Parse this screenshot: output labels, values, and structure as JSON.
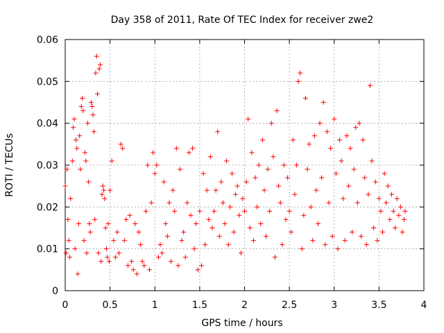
{
  "chart_data": {
    "type": "scatter",
    "title": "Day 358 of 2011, Rate Of TEC Index for receiver zwe2",
    "xlabel": "GPS time / hours",
    "ylabel": "ROTI / TECUs",
    "xlim": [
      0,
      4
    ],
    "ylim": [
      0,
      0.06
    ],
    "x_ticks": [
      0,
      0.5,
      1,
      1.5,
      2,
      2.5,
      3,
      3.5,
      4
    ],
    "x_tick_labels": [
      "0",
      "0.5",
      "1",
      "1.5",
      "2",
      "2.5",
      "3",
      "3.5",
      "4"
    ],
    "y_ticks": [
      0,
      0.01,
      0.02,
      0.03,
      0.04,
      0.05,
      0.06
    ],
    "y_tick_labels": [
      "0",
      "0.01",
      "0.02",
      "0.03",
      "0.04",
      "0.05",
      "0.06"
    ],
    "grid": true,
    "marker": "+",
    "series": [
      {
        "name": "ROTI",
        "color": "#ff0000",
        "points": [
          [
            0.0,
            0.025
          ],
          [
            0.01,
            0.009
          ],
          [
            0.02,
            0.029
          ],
          [
            0.03,
            0.017
          ],
          [
            0.04,
            0.012
          ],
          [
            0.05,
            0.008
          ],
          [
            0.06,
            0.022
          ],
          [
            0.08,
            0.031
          ],
          [
            0.09,
            0.039
          ],
          [
            0.1,
            0.041
          ],
          [
            0.11,
            0.01
          ],
          [
            0.12,
            0.036
          ],
          [
            0.13,
            0.034
          ],
          [
            0.14,
            0.004
          ],
          [
            0.15,
            0.016
          ],
          [
            0.16,
            0.037
          ],
          [
            0.17,
            0.029
          ],
          [
            0.18,
            0.044
          ],
          [
            0.19,
            0.046
          ],
          [
            0.2,
            0.043
          ],
          [
            0.21,
            0.012
          ],
          [
            0.22,
            0.033
          ],
          [
            0.23,
            0.031
          ],
          [
            0.24,
            0.009
          ],
          [
            0.25,
            0.04
          ],
          [
            0.26,
            0.026
          ],
          [
            0.27,
            0.016
          ],
          [
            0.28,
            0.014
          ],
          [
            0.29,
            0.045
          ],
          [
            0.3,
            0.044
          ],
          [
            0.31,
            0.042
          ],
          [
            0.32,
            0.038
          ],
          [
            0.33,
            0.017
          ],
          [
            0.34,
            0.052
          ],
          [
            0.35,
            0.056
          ],
          [
            0.36,
            0.047
          ],
          [
            0.37,
            0.009
          ],
          [
            0.38,
            0.053
          ],
          [
            0.39,
            0.054
          ],
          [
            0.4,
            0.007
          ],
          [
            0.41,
            0.023
          ],
          [
            0.42,
            0.025
          ],
          [
            0.43,
            0.024
          ],
          [
            0.44,
            0.022
          ],
          [
            0.45,
            0.015
          ],
          [
            0.46,
            0.01
          ],
          [
            0.47,
            0.008
          ],
          [
            0.48,
            0.016
          ],
          [
            0.49,
            0.007
          ],
          [
            0.5,
            0.024
          ],
          [
            0.52,
            0.031
          ],
          [
            0.54,
            0.012
          ],
          [
            0.56,
            0.008
          ],
          [
            0.58,
            0.014
          ],
          [
            0.6,
            0.009
          ],
          [
            0.62,
            0.035
          ],
          [
            0.64,
            0.034
          ],
          [
            0.66,
            0.012
          ],
          [
            0.68,
            0.017
          ],
          [
            0.7,
            0.006
          ],
          [
            0.72,
            0.018
          ],
          [
            0.74,
            0.007
          ],
          [
            0.76,
            0.005
          ],
          [
            0.78,
            0.016
          ],
          [
            0.8,
            0.004
          ],
          [
            0.82,
            0.014
          ],
          [
            0.84,
            0.011
          ],
          [
            0.86,
            0.007
          ],
          [
            0.88,
            0.006
          ],
          [
            0.9,
            0.019
          ],
          [
            0.92,
            0.03
          ],
          [
            0.94,
            0.005
          ],
          [
            0.96,
            0.021
          ],
          [
            0.98,
            0.033
          ],
          [
            1.0,
            0.028
          ],
          [
            1.02,
            0.03
          ],
          [
            1.04,
            0.008
          ],
          [
            1.06,
            0.011
          ],
          [
            1.08,
            0.009
          ],
          [
            1.1,
            0.026
          ],
          [
            1.12,
            0.016
          ],
          [
            1.14,
            0.013
          ],
          [
            1.16,
            0.021
          ],
          [
            1.18,
            0.007
          ],
          [
            1.2,
            0.024
          ],
          [
            1.22,
            0.019
          ],
          [
            1.24,
            0.034
          ],
          [
            1.26,
            0.006
          ],
          [
            1.28,
            0.029
          ],
          [
            1.3,
            0.012
          ],
          [
            1.32,
            0.014
          ],
          [
            1.34,
            0.008
          ],
          [
            1.36,
            0.021
          ],
          [
            1.38,
            0.033
          ],
          [
            1.4,
            0.018
          ],
          [
            1.42,
            0.034
          ],
          [
            1.44,
            0.01
          ],
          [
            1.46,
            0.016
          ],
          [
            1.48,
            0.005
          ],
          [
            1.5,
            0.019
          ],
          [
            1.52,
            0.006
          ],
          [
            1.54,
            0.028
          ],
          [
            1.56,
            0.011
          ],
          [
            1.58,
            0.024
          ],
          [
            1.6,
            0.017
          ],
          [
            1.62,
            0.032
          ],
          [
            1.64,
            0.015
          ],
          [
            1.66,
            0.019
          ],
          [
            1.68,
            0.024
          ],
          [
            1.7,
            0.038
          ],
          [
            1.72,
            0.013
          ],
          [
            1.74,
            0.026
          ],
          [
            1.76,
            0.021
          ],
          [
            1.78,
            0.016
          ],
          [
            1.8,
            0.031
          ],
          [
            1.82,
            0.011
          ],
          [
            1.84,
            0.02
          ],
          [
            1.86,
            0.028
          ],
          [
            1.88,
            0.014
          ],
          [
            1.9,
            0.023
          ],
          [
            1.92,
            0.025
          ],
          [
            1.94,
            0.018
          ],
          [
            1.96,
            0.009
          ],
          [
            1.98,
            0.022
          ],
          [
            2.0,
            0.019
          ],
          [
            2.02,
            0.026
          ],
          [
            2.04,
            0.041
          ],
          [
            2.06,
            0.015
          ],
          [
            2.08,
            0.033
          ],
          [
            2.1,
            0.012
          ],
          [
            2.12,
            0.027
          ],
          [
            2.14,
            0.02
          ],
          [
            2.16,
            0.03
          ],
          [
            2.18,
            0.016
          ],
          [
            2.2,
            0.036
          ],
          [
            2.22,
            0.024
          ],
          [
            2.24,
            0.013
          ],
          [
            2.26,
            0.029
          ],
          [
            2.28,
            0.019
          ],
          [
            2.3,
            0.04
          ],
          [
            2.32,
            0.032
          ],
          [
            2.34,
            0.008
          ],
          [
            2.36,
            0.043
          ],
          [
            2.38,
            0.025
          ],
          [
            2.4,
            0.021
          ],
          [
            2.42,
            0.011
          ],
          [
            2.44,
            0.03
          ],
          [
            2.46,
            0.017
          ],
          [
            2.48,
            0.027
          ],
          [
            2.5,
            0.019
          ],
          [
            2.52,
            0.014
          ],
          [
            2.54,
            0.036
          ],
          [
            2.56,
            0.023
          ],
          [
            2.58,
            0.03
          ],
          [
            2.6,
            0.05
          ],
          [
            2.62,
            0.052
          ],
          [
            2.64,
            0.01
          ],
          [
            2.66,
            0.018
          ],
          [
            2.68,
            0.046
          ],
          [
            2.7,
            0.029
          ],
          [
            2.72,
            0.035
          ],
          [
            2.74,
            0.02
          ],
          [
            2.76,
            0.012
          ],
          [
            2.78,
            0.037
          ],
          [
            2.8,
            0.024
          ],
          [
            2.82,
            0.016
          ],
          [
            2.84,
            0.04
          ],
          [
            2.86,
            0.027
          ],
          [
            2.88,
            0.045
          ],
          [
            2.9,
            0.011
          ],
          [
            2.92,
            0.038
          ],
          [
            2.94,
            0.021
          ],
          [
            2.96,
            0.034
          ],
          [
            2.98,
            0.013
          ],
          [
            3.0,
            0.041
          ],
          [
            3.02,
            0.028
          ],
          [
            3.04,
            0.01
          ],
          [
            3.06,
            0.036
          ],
          [
            3.08,
            0.031
          ],
          [
            3.1,
            0.022
          ],
          [
            3.12,
            0.012
          ],
          [
            3.14,
            0.037
          ],
          [
            3.16,
            0.025
          ],
          [
            3.18,
            0.034
          ],
          [
            3.2,
            0.014
          ],
          [
            3.22,
            0.029
          ],
          [
            3.24,
            0.039
          ],
          [
            3.26,
            0.021
          ],
          [
            3.28,
            0.04
          ],
          [
            3.3,
            0.013
          ],
          [
            3.32,
            0.036
          ],
          [
            3.34,
            0.027
          ],
          [
            3.36,
            0.011
          ],
          [
            3.38,
            0.023
          ],
          [
            3.4,
            0.049
          ],
          [
            3.42,
            0.031
          ],
          [
            3.44,
            0.015
          ],
          [
            3.46,
            0.026
          ],
          [
            3.48,
            0.012
          ],
          [
            3.5,
            0.022
          ],
          [
            3.52,
            0.019
          ],
          [
            3.54,
            0.014
          ],
          [
            3.56,
            0.028
          ],
          [
            3.58,
            0.021
          ],
          [
            3.6,
            0.025
          ],
          [
            3.62,
            0.017
          ],
          [
            3.64,
            0.023
          ],
          [
            3.66,
            0.019
          ],
          [
            3.68,
            0.015
          ],
          [
            3.7,
            0.022
          ],
          [
            3.72,
            0.018
          ],
          [
            3.74,
            0.02
          ],
          [
            3.76,
            0.014
          ],
          [
            3.78,
            0.017
          ],
          [
            3.79,
            0.019
          ]
        ]
      }
    ]
  }
}
